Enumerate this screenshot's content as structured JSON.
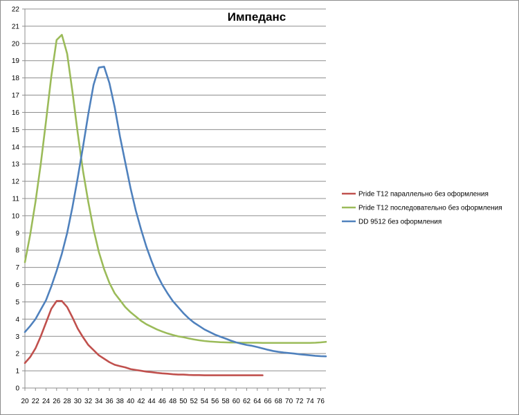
{
  "chart_data": {
    "type": "line",
    "title": "Импеданс",
    "xlabel": "",
    "ylabel": "",
    "xlim": [
      20,
      77
    ],
    "ylim": [
      0,
      22
    ],
    "x_ticks": [
      "20",
      "22",
      "24",
      "26",
      "28",
      "30",
      "32",
      "34",
      "36",
      "38",
      "40",
      "42",
      "44",
      "46",
      "48",
      "50",
      "52",
      "54",
      "56",
      "58",
      "60",
      "62",
      "64",
      "66",
      "68",
      "70",
      "72",
      "74",
      "76"
    ],
    "y_ticks": [
      "0",
      "1",
      "2",
      "3",
      "4",
      "5",
      "6",
      "7",
      "8",
      "9",
      "10",
      "11",
      "12",
      "13",
      "14",
      "15",
      "16",
      "17",
      "18",
      "19",
      "20",
      "21",
      "22"
    ],
    "grid": "horizontal",
    "legend_position": "right",
    "series": [
      {
        "name": "Pride T12 параллельно  без оформления",
        "color": "#c0504d",
        "x": [
          20,
          21,
          22,
          23,
          24,
          25,
          26,
          27,
          28,
          29,
          30,
          31,
          32,
          33,
          34,
          35,
          36,
          37,
          38,
          39,
          40,
          41,
          42,
          43,
          44,
          45,
          46,
          47,
          48,
          49,
          50,
          51,
          52,
          53,
          54,
          55,
          56,
          57,
          58,
          59,
          60,
          61,
          62,
          63,
          64,
          65
        ],
        "y": [
          1.45,
          1.8,
          2.3,
          3.0,
          3.8,
          4.6,
          5.05,
          5.05,
          4.7,
          4.1,
          3.45,
          2.95,
          2.5,
          2.2,
          1.9,
          1.7,
          1.5,
          1.35,
          1.27,
          1.2,
          1.1,
          1.05,
          1.0,
          0.95,
          0.92,
          0.88,
          0.85,
          0.83,
          0.8,
          0.78,
          0.78,
          0.76,
          0.75,
          0.75,
          0.74,
          0.74,
          0.74,
          0.74,
          0.74,
          0.74,
          0.74,
          0.74,
          0.74,
          0.74,
          0.74,
          0.74
        ]
      },
      {
        "name": "Pride T12 последовательно без оформления",
        "color": "#9bbb59",
        "x": [
          20,
          21,
          22,
          23,
          24,
          25,
          26,
          27,
          28,
          29,
          30,
          31,
          32,
          33,
          34,
          35,
          36,
          37,
          38,
          39,
          40,
          41,
          42,
          43,
          44,
          45,
          46,
          47,
          48,
          49,
          50,
          51,
          52,
          53,
          54,
          55,
          56,
          57,
          58,
          59,
          60,
          61,
          62,
          63,
          64,
          65,
          66,
          67,
          68,
          69,
          70,
          71,
          72,
          73,
          74,
          75,
          76,
          77
        ],
        "y": [
          7.3,
          8.9,
          10.8,
          13.0,
          15.5,
          18.1,
          20.2,
          20.5,
          19.4,
          17.2,
          14.8,
          12.6,
          10.8,
          9.2,
          7.9,
          6.9,
          6.1,
          5.5,
          5.1,
          4.7,
          4.4,
          4.15,
          3.9,
          3.7,
          3.55,
          3.4,
          3.28,
          3.17,
          3.08,
          3.0,
          2.95,
          2.88,
          2.82,
          2.77,
          2.73,
          2.7,
          2.68,
          2.66,
          2.65,
          2.64,
          2.64,
          2.63,
          2.63,
          2.63,
          2.63,
          2.62,
          2.62,
          2.62,
          2.62,
          2.62,
          2.62,
          2.62,
          2.62,
          2.62,
          2.62,
          2.63,
          2.65,
          2.68
        ]
      },
      {
        "name": "DD 9512  без оформления",
        "color": "#4f81bd",
        "x": [
          20,
          21,
          22,
          23,
          24,
          25,
          26,
          27,
          28,
          29,
          30,
          31,
          32,
          33,
          34,
          35,
          36,
          37,
          38,
          39,
          40,
          41,
          42,
          43,
          44,
          45,
          46,
          47,
          48,
          49,
          50,
          51,
          52,
          53,
          54,
          55,
          56,
          57,
          58,
          59,
          60,
          61,
          62,
          63,
          64,
          65,
          66,
          67,
          68,
          69,
          70,
          71,
          72,
          73,
          74,
          75,
          76,
          77
        ],
        "y": [
          3.25,
          3.6,
          4.0,
          4.55,
          5.1,
          5.9,
          6.8,
          7.8,
          9.0,
          10.5,
          12.2,
          14.0,
          15.9,
          17.6,
          18.6,
          18.65,
          17.7,
          16.3,
          14.6,
          13.1,
          11.6,
          10.3,
          9.2,
          8.2,
          7.35,
          6.6,
          6.0,
          5.5,
          5.05,
          4.7,
          4.35,
          4.05,
          3.8,
          3.6,
          3.4,
          3.25,
          3.1,
          2.98,
          2.87,
          2.75,
          2.65,
          2.57,
          2.5,
          2.45,
          2.38,
          2.3,
          2.22,
          2.15,
          2.1,
          2.06,
          2.03,
          2.0,
          1.96,
          1.93,
          1.9,
          1.87,
          1.85,
          1.84
        ]
      }
    ]
  }
}
